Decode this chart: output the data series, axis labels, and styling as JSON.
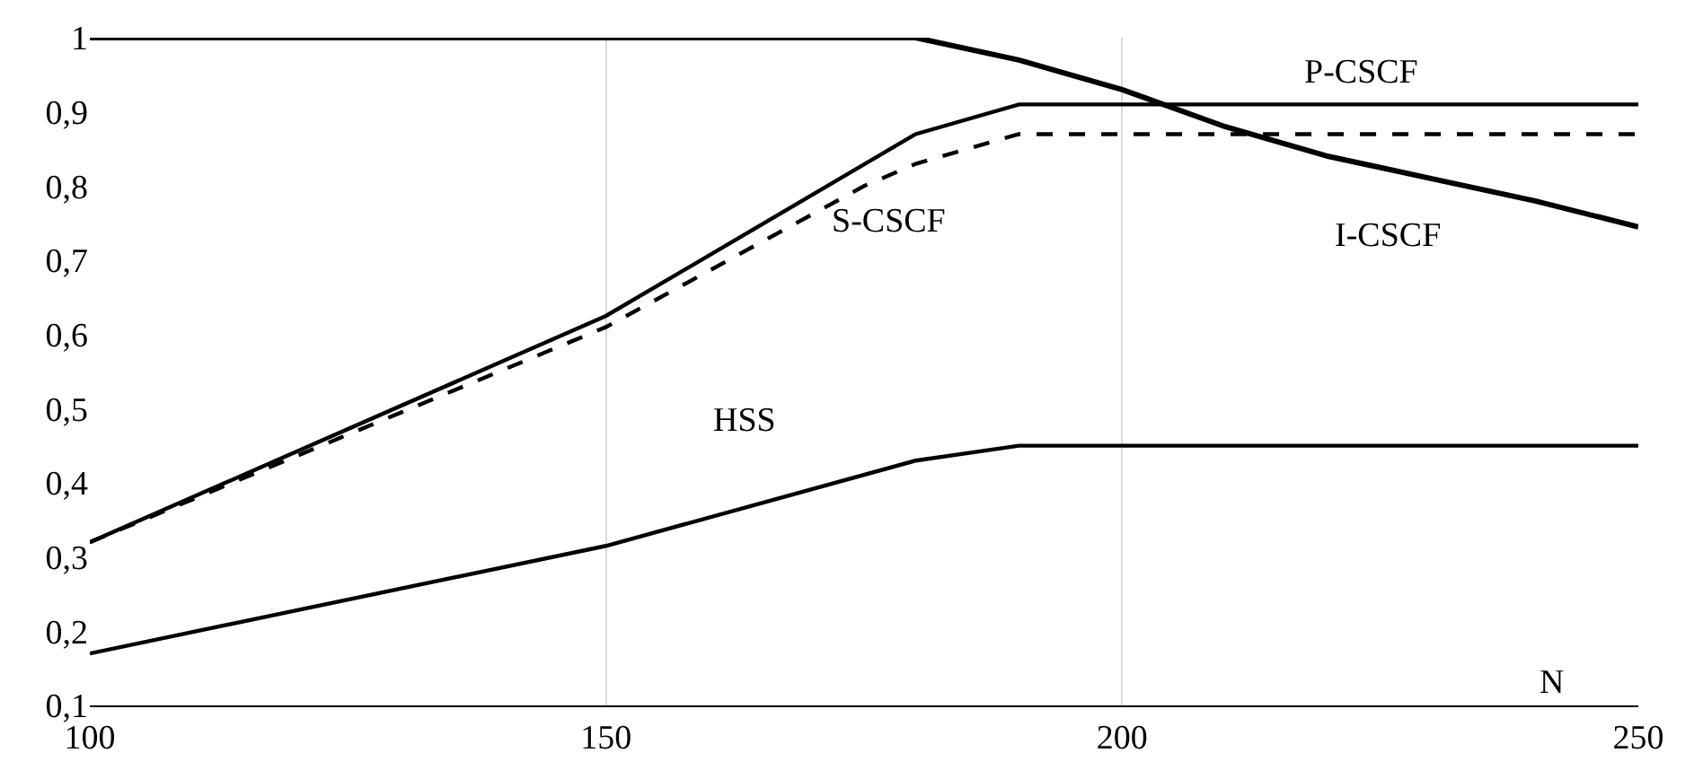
{
  "chart_data": {
    "type": "line",
    "xlabel": "N",
    "xlim": [
      100,
      250
    ],
    "xticks": [
      100,
      150,
      200,
      250
    ],
    "ylim": [
      0.1,
      1
    ],
    "yticks": [
      {
        "value": 0.1,
        "label": "0,1"
      },
      {
        "value": 0.2,
        "label": "0,2"
      },
      {
        "value": 0.3,
        "label": "0,3"
      },
      {
        "value": 0.4,
        "label": "0,4"
      },
      {
        "value": 0.5,
        "label": "0,5"
      },
      {
        "value": 0.6,
        "label": "0,6"
      },
      {
        "value": 0.7,
        "label": "0,7"
      },
      {
        "value": 0.8,
        "label": "0,8"
      },
      {
        "value": 0.9,
        "label": "0,9"
      },
      {
        "value": 1,
        "label": "1"
      }
    ],
    "grid": "x",
    "legend": false,
    "marker": "none",
    "series": [
      {
        "name": "I-CSCF",
        "color": "#000000",
        "line_style": "solid",
        "x": [
          100,
          180,
          190,
          200,
          210,
          220,
          230,
          240,
          250
        ],
        "values": [
          1,
          1,
          0.97,
          0.93,
          0.88,
          0.84,
          0.81,
          0.78,
          0.745
        ]
      },
      {
        "name": "P-CSCF",
        "color": "#000000",
        "line_style": "solid",
        "x": [
          100,
          150,
          180,
          190,
          250
        ],
        "values": [
          0.32,
          0.625,
          0.87,
          0.91,
          0.91
        ]
      },
      {
        "name": "S-CSCF",
        "color": "#000000",
        "line_style": "dashed",
        "x": [
          100,
          150,
          175,
          180,
          190,
          250
        ],
        "values": [
          0.32,
          0.61,
          0.8,
          0.83,
          0.87,
          0.87
        ]
      },
      {
        "name": "HSS",
        "color": "#000000",
        "line_style": "solid",
        "x": [
          100,
          150,
          180,
          190,
          250
        ],
        "values": [
          0.17,
          0.315,
          0.43,
          0.45,
          0.45
        ]
      }
    ]
  }
}
